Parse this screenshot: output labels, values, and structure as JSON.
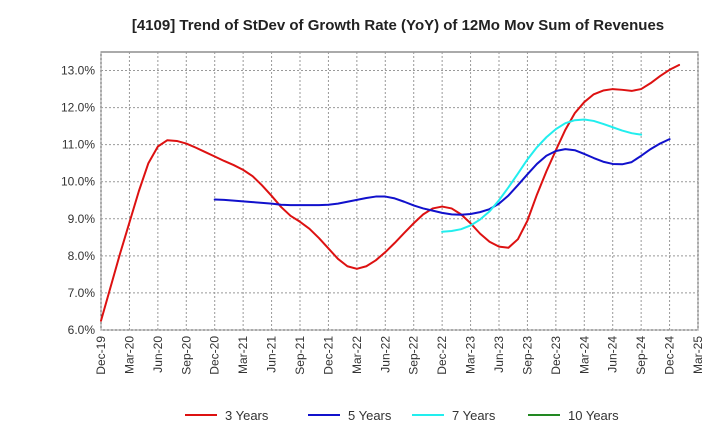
{
  "chart_data": {
    "type": "line",
    "title": "[4109]  Trend of StDev of Growth Rate (YoY) of 12Mo Mov Sum of Revenues",
    "xlabel": "",
    "ylabel": "",
    "ylim": [
      6.0,
      13.5
    ],
    "y_ticks": [
      "6.0%",
      "7.0%",
      "8.0%",
      "9.0%",
      "10.0%",
      "11.0%",
      "12.0%",
      "13.0%"
    ],
    "x_ticks": [
      "Dec-19",
      "Mar-20",
      "Jun-20",
      "Sep-20",
      "Dec-20",
      "Mar-21",
      "Jun-21",
      "Sep-21",
      "Dec-21",
      "Mar-22",
      "Jun-22",
      "Sep-22",
      "Dec-22",
      "Mar-23",
      "Jun-23",
      "Sep-23",
      "Dec-23",
      "Mar-24",
      "Jun-24",
      "Sep-24",
      "Dec-24",
      "Mar-25"
    ],
    "grid": true,
    "legend_position": "bottom",
    "series": [
      {
        "name": "3 Years",
        "color": "#dd1111",
        "points": [
          [
            0,
            6.25
          ],
          [
            1,
            7.15
          ],
          [
            2,
            8.05
          ],
          [
            3,
            8.9
          ],
          [
            4,
            9.75
          ],
          [
            5,
            10.5
          ],
          [
            6,
            10.95
          ],
          [
            7,
            11.12
          ],
          [
            8,
            11.1
          ],
          [
            9,
            11.03
          ],
          [
            10,
            10.92
          ],
          [
            11,
            10.8
          ],
          [
            12,
            10.68
          ],
          [
            13,
            10.56
          ],
          [
            14,
            10.45
          ],
          [
            15,
            10.32
          ],
          [
            16,
            10.15
          ],
          [
            17,
            9.9
          ],
          [
            18,
            9.62
          ],
          [
            19,
            9.32
          ],
          [
            20,
            9.08
          ],
          [
            21,
            8.92
          ],
          [
            22,
            8.73
          ],
          [
            23,
            8.48
          ],
          [
            24,
            8.2
          ],
          [
            25,
            7.92
          ],
          [
            26,
            7.72
          ],
          [
            27,
            7.65
          ],
          [
            28,
            7.72
          ],
          [
            29,
            7.88
          ],
          [
            30,
            8.1
          ],
          [
            31,
            8.35
          ],
          [
            32,
            8.62
          ],
          [
            33,
            8.88
          ],
          [
            34,
            9.12
          ],
          [
            35,
            9.28
          ],
          [
            36,
            9.33
          ],
          [
            37,
            9.28
          ],
          [
            38,
            9.12
          ],
          [
            39,
            8.88
          ],
          [
            40,
            8.6
          ],
          [
            41,
            8.38
          ],
          [
            42,
            8.25
          ],
          [
            43,
            8.22
          ],
          [
            44,
            8.45
          ],
          [
            45,
            8.95
          ],
          [
            46,
            9.65
          ],
          [
            47,
            10.28
          ],
          [
            48,
            10.85
          ],
          [
            49,
            11.4
          ],
          [
            50,
            11.85
          ],
          [
            51,
            12.15
          ],
          [
            52,
            12.36
          ],
          [
            53,
            12.46
          ],
          [
            54,
            12.5
          ],
          [
            55,
            12.48
          ],
          [
            56,
            12.45
          ],
          [
            57,
            12.5
          ],
          [
            58,
            12.66
          ],
          [
            59,
            12.85
          ],
          [
            60,
            13.02
          ],
          [
            61,
            13.15
          ]
        ]
      },
      {
        "name": "5 Years",
        "color": "#1111cc",
        "points": [
          [
            12,
            9.52
          ],
          [
            13,
            9.51
          ],
          [
            14,
            9.49
          ],
          [
            15,
            9.47
          ],
          [
            16,
            9.45
          ],
          [
            17,
            9.43
          ],
          [
            18,
            9.41
          ],
          [
            19,
            9.38
          ],
          [
            20,
            9.37
          ],
          [
            21,
            9.37
          ],
          [
            22,
            9.37
          ],
          [
            23,
            9.37
          ],
          [
            24,
            9.38
          ],
          [
            25,
            9.41
          ],
          [
            26,
            9.46
          ],
          [
            27,
            9.51
          ],
          [
            28,
            9.56
          ],
          [
            29,
            9.6
          ],
          [
            30,
            9.6
          ],
          [
            31,
            9.55
          ],
          [
            32,
            9.46
          ],
          [
            33,
            9.36
          ],
          [
            34,
            9.28
          ],
          [
            35,
            9.22
          ],
          [
            36,
            9.16
          ],
          [
            37,
            9.12
          ],
          [
            38,
            9.11
          ],
          [
            39,
            9.13
          ],
          [
            40,
            9.18
          ],
          [
            41,
            9.26
          ],
          [
            42,
            9.41
          ],
          [
            43,
            9.63
          ],
          [
            44,
            9.91
          ],
          [
            45,
            10.2
          ],
          [
            46,
            10.48
          ],
          [
            47,
            10.7
          ],
          [
            48,
            10.83
          ],
          [
            49,
            10.88
          ],
          [
            50,
            10.85
          ],
          [
            51,
            10.75
          ],
          [
            52,
            10.64
          ],
          [
            53,
            10.54
          ],
          [
            54,
            10.48
          ],
          [
            55,
            10.47
          ],
          [
            56,
            10.53
          ],
          [
            57,
            10.7
          ],
          [
            58,
            10.88
          ],
          [
            59,
            11.03
          ],
          [
            60,
            11.15
          ]
        ]
      },
      {
        "name": "7 Years",
        "color": "#22eeee",
        "points": [
          [
            36,
            8.65
          ],
          [
            37,
            8.67
          ],
          [
            38,
            8.72
          ],
          [
            39,
            8.82
          ],
          [
            40,
            8.98
          ],
          [
            41,
            9.2
          ],
          [
            42,
            9.5
          ],
          [
            43,
            9.85
          ],
          [
            44,
            10.22
          ],
          [
            45,
            10.6
          ],
          [
            46,
            10.93
          ],
          [
            47,
            11.2
          ],
          [
            48,
            11.42
          ],
          [
            49,
            11.58
          ],
          [
            50,
            11.66
          ],
          [
            51,
            11.68
          ],
          [
            52,
            11.64
          ],
          [
            53,
            11.56
          ],
          [
            54,
            11.47
          ],
          [
            55,
            11.38
          ],
          [
            56,
            11.31
          ],
          [
            57,
            11.27
          ]
        ]
      },
      {
        "name": "10 Years",
        "color": "#228822",
        "points": []
      }
    ]
  }
}
